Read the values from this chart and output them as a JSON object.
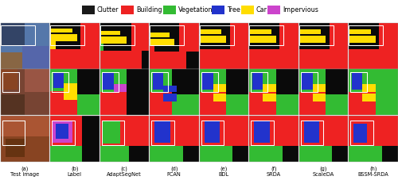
{
  "legend_items": [
    {
      "label": "Clutter",
      "color": "#1a1a1a"
    },
    {
      "label": "Building",
      "color": "#ee2222"
    },
    {
      "label": "Vegetation",
      "color": "#33bb33"
    },
    {
      "label": "Tree",
      "color": "#2233cc"
    },
    {
      "label": "Car",
      "color": "#ffdd00"
    },
    {
      "label": "Impervious",
      "color": "#cc44cc"
    }
  ],
  "col_labels": [
    "(a)\nTest image",
    "(b)\nLabel",
    "(c)\nAdaptSegNet",
    "(d)\nFCAN",
    "(e)\nBDL",
    "(f)\nSRDA",
    "(g)\nScaleDA",
    "(h)\nBSSM-SRDA"
  ],
  "n_rows": 3,
  "n_cols": 8,
  "figsize": [
    5.0,
    2.27
  ],
  "dpi": 100,
  "legend_fontsize": 5.8,
  "col_label_fontsize": 4.8,
  "background_color": "#ffffff"
}
